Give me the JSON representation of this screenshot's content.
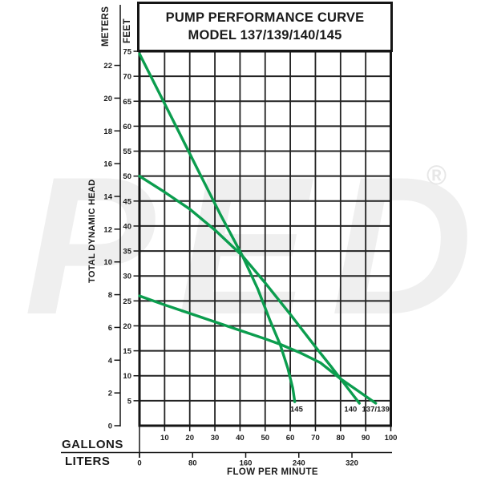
{
  "title": {
    "line1": "PUMP PERFORMANCE CURVE",
    "line2": "MODEL 137/139/140/145"
  },
  "watermark": {
    "text": "PED",
    "registered": "®"
  },
  "colors": {
    "curve": "#0b9d4e",
    "grid": "#222222",
    "border": "#151515",
    "text": "#1a1a1a",
    "watermark": "#efefef"
  },
  "axes": {
    "y_outer_unit": "METERS",
    "y_inner_unit": "FEET",
    "y_title": "TOTAL DYNAMIC HEAD",
    "x_row1_unit": "GALLONS",
    "x_row2_unit": "LITERS",
    "x_title": "FLOW PER MINUTE"
  },
  "chart_data": {
    "type": "line",
    "title": "PUMP PERFORMANCE CURVE MODEL 137/139/140/145",
    "grid": true,
    "legend_position": "curve-end-labels",
    "x_axis": {
      "label": "FLOW PER MINUTE",
      "primary_unit": "GALLONS",
      "secondary_unit": "LITERS",
      "gallons_range": [
        0,
        100
      ],
      "gallons_ticks": [
        10,
        20,
        30,
        40,
        50,
        60,
        70,
        80,
        90,
        100
      ],
      "liters_ticks": [
        0,
        80,
        160,
        240,
        320
      ]
    },
    "y_axis": {
      "label": "TOTAL DYNAMIC HEAD",
      "primary_unit": "FEET",
      "secondary_unit": "METERS",
      "feet_range": [
        0,
        75
      ],
      "feet_ticks": [
        75,
        70,
        65,
        60,
        55,
        50,
        45,
        40,
        35,
        30,
        25,
        20,
        15,
        10,
        5
      ],
      "meters_ticks": [
        22,
        20,
        18,
        16,
        14,
        12,
        10,
        8,
        6,
        4,
        2,
        0
      ]
    },
    "series": [
      {
        "name": "145",
        "label_pos": {
          "gpm": 62.5,
          "ft": 2.8
        },
        "points_gpm_ft": [
          [
            0,
            74.5
          ],
          [
            8,
            66.5
          ],
          [
            16,
            58.5
          ],
          [
            24,
            50.5
          ],
          [
            32,
            42.5
          ],
          [
            41,
            34
          ],
          [
            47,
            27.5
          ],
          [
            52,
            21
          ],
          [
            56,
            16.2
          ],
          [
            59,
            11.5
          ],
          [
            61,
            7.5
          ],
          [
            61.8,
            4.8
          ]
        ]
      },
      {
        "name": "140",
        "label_pos": {
          "gpm": 84,
          "ft": 2.8
        },
        "points_gpm_ft": [
          [
            0,
            50
          ],
          [
            10,
            46.8
          ],
          [
            20,
            43.4
          ],
          [
            30,
            39.2
          ],
          [
            41,
            34
          ],
          [
            50,
            28.6
          ],
          [
            60,
            22.3
          ],
          [
            70,
            15.8
          ],
          [
            76,
            12
          ],
          [
            80,
            9.4
          ],
          [
            87.5,
            4.5
          ]
        ]
      },
      {
        "name": "137/139",
        "label_pos": {
          "gpm": 94,
          "ft": 2.8
        },
        "points_gpm_ft": [
          [
            0,
            26
          ],
          [
            10,
            24.2
          ],
          [
            20,
            22.5
          ],
          [
            30,
            20.8
          ],
          [
            40,
            19.1
          ],
          [
            50,
            17.4
          ],
          [
            56,
            16.3
          ],
          [
            64,
            14.6
          ],
          [
            72,
            12.6
          ],
          [
            80,
            9.4
          ],
          [
            88,
            6.6
          ],
          [
            94,
            4.5
          ]
        ]
      }
    ]
  }
}
